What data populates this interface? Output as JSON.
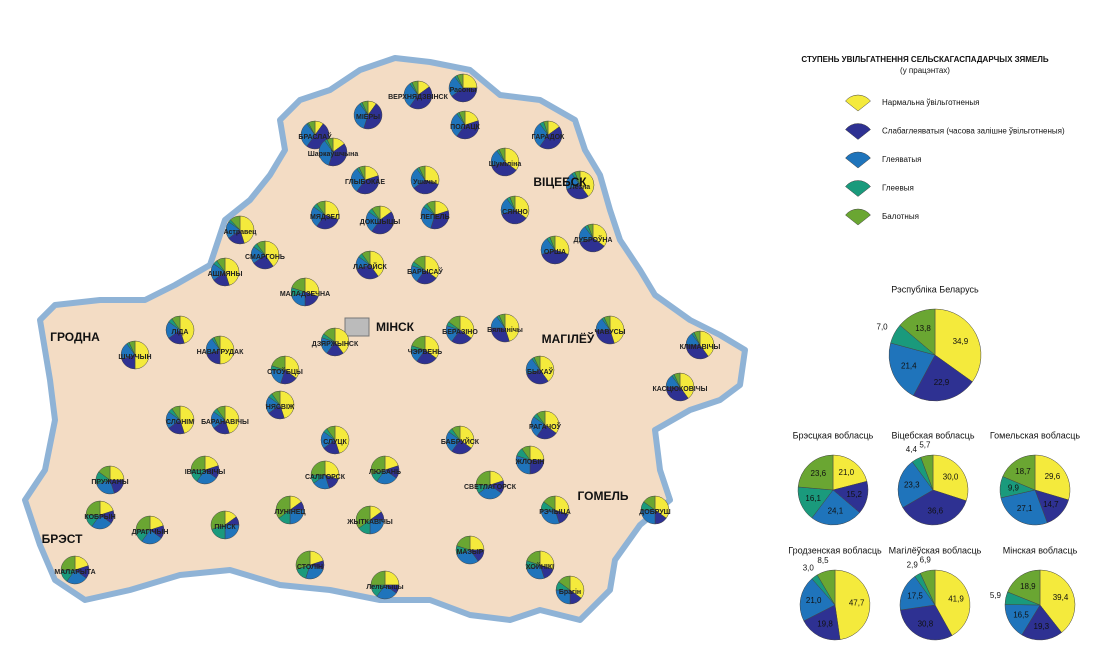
{
  "legend": {
    "title": "СТУПЕНЬ УВІЛЬГАТНЕННЯ СЕЛЬСКАГАСПАДАРЧЫХ ЗЯМЕЛЬ",
    "subtitle": "(у працэнтах)",
    "items": [
      {
        "name": "Нармальна ўвільготненыя",
        "color": "#f4ea3c"
      },
      {
        "name": "Слабаглеяватыя (часова залішне ўвільготненыя)",
        "color": "#2e3192"
      },
      {
        "name": "Глеяватыя",
        "color": "#1f74bb"
      },
      {
        "name": "Глеевыя",
        "color": "#1a9a7c"
      },
      {
        "name": "Балотныя",
        "color": "#6aa632"
      }
    ]
  },
  "regions": [
    {
      "name": "Рэспубліка Беларусь",
      "values": [
        34.9,
        22.9,
        21.4,
        7.0,
        13.8
      ],
      "value_labels": [
        "34,9",
        "22,9",
        "21,4",
        "7,0",
        "13,8"
      ]
    },
    {
      "name": "Брэсцкая вобласць",
      "values": [
        21.0,
        15.2,
        24.1,
        16.1,
        23.6
      ],
      "value_labels": [
        "21,0",
        "15,2",
        "24,1",
        "16,1",
        "23,6"
      ]
    },
    {
      "name": "Віцебская вобласць",
      "values": [
        30.0,
        36.6,
        23.3,
        4.4,
        5.7
      ],
      "value_labels": [
        "30,0",
        "36,6",
        "23,3",
        "4,4",
        "5,7"
      ]
    },
    {
      "name": "Гомельская вобласць",
      "values": [
        29.6,
        14.7,
        27.1,
        9.9,
        18.7
      ],
      "value_labels": [
        "29,6",
        "14,7",
        "27,1",
        "9,9",
        "18,7"
      ]
    },
    {
      "name": "Гродзенская вобласць",
      "values": [
        47.7,
        19.8,
        21.0,
        3.0,
        8.5
      ],
      "value_labels": [
        "47,7",
        "19,8",
        "21,0",
        "3,0",
        "8,5"
      ]
    },
    {
      "name": "Магілёўская вобласць",
      "values": [
        41.9,
        30.8,
        17.5,
        2.9,
        6.9
      ],
      "value_labels": [
        "41,9",
        "30,8",
        "17,5",
        "2,9",
        "6,9"
      ]
    },
    {
      "name": "Мінская вобласць",
      "values": [
        39.4,
        19.3,
        16.5,
        5.9,
        18.9
      ],
      "value_labels": [
        "39,4",
        "19,3",
        "16,5",
        "5,9",
        "18,9"
      ]
    }
  ],
  "map": {
    "cities": [
      "ГРОДНА",
      "БРЭСТ",
      "МІНСК",
      "ВІЦЕБСК",
      "МАГІЛЁЎ",
      "ГОМЕЛЬ"
    ],
    "districts": [
      {
        "name": "ВЕРХНЯДЗВІНСК",
        "values": [
          15,
          45,
          30,
          3,
          7
        ]
      },
      {
        "name": "БРАСЛАЎ",
        "values": [
          10,
          50,
          30,
          2,
          8
        ]
      },
      {
        "name": "МІЁРЫ",
        "values": [
          10,
          45,
          35,
          3,
          7
        ]
      },
      {
        "name": "ПОЛАЦК",
        "values": [
          20,
          40,
          30,
          3,
          7
        ]
      },
      {
        "name": "ГАРАДОК",
        "values": [
          15,
          45,
          30,
          5,
          5
        ]
      },
      {
        "name": "Расоны",
        "values": [
          25,
          40,
          25,
          3,
          7
        ]
      },
      {
        "name": "Шаркаўшчына",
        "values": [
          15,
          40,
          35,
          3,
          7
        ]
      },
      {
        "name": "ГЛЫБОКАЕ",
        "values": [
          20,
          40,
          30,
          3,
          7
        ]
      },
      {
        "name": "Ушачы",
        "values": [
          30,
          35,
          25,
          3,
          7
        ]
      },
      {
        "name": "Шуміліна",
        "values": [
          35,
          35,
          20,
          3,
          7
        ]
      },
      {
        "name": "Лёзна",
        "values": [
          40,
          30,
          20,
          4,
          6
        ]
      },
      {
        "name": "МЯДЗЕЛ",
        "values": [
          30,
          30,
          25,
          5,
          10
        ]
      },
      {
        "name": "ДОКШЫЦЫ",
        "values": [
          15,
          45,
          25,
          5,
          10
        ]
      },
      {
        "name": "ЛЕПЕЛЬ",
        "values": [
          20,
          35,
          30,
          5,
          10
        ]
      },
      {
        "name": "СЯННО",
        "values": [
          35,
          35,
          20,
          4,
          6
        ]
      },
      {
        "name": "Астравец",
        "values": [
          45,
          20,
          20,
          3,
          12
        ]
      },
      {
        "name": "СМАРГОНЬ",
        "values": [
          40,
          25,
          20,
          5,
          10
        ]
      },
      {
        "name": "АШМЯНЫ",
        "values": [
          45,
          20,
          20,
          5,
          10
        ]
      },
      {
        "name": "ЛАГОЙСК",
        "values": [
          40,
          30,
          15,
          5,
          10
        ]
      },
      {
        "name": "БАРЫСАЎ",
        "values": [
          35,
          25,
          20,
          5,
          15
        ]
      },
      {
        "name": "ОРША",
        "values": [
          30,
          40,
          20,
          4,
          6
        ]
      },
      {
        "name": "ДУБРОЎНА",
        "values": [
          35,
          35,
          20,
          4,
          6
        ]
      },
      {
        "name": "МАЛАДЗЕЧНА",
        "values": [
          30,
          20,
          20,
          10,
          20
        ]
      },
      {
        "name": "ЛІДА",
        "values": [
          45,
          20,
          20,
          5,
          10
        ]
      },
      {
        "name": "Бялынічы",
        "values": [
          45,
          30,
          15,
          3,
          7
        ]
      },
      {
        "name": "БЕРАЗІНО",
        "values": [
          35,
          25,
          20,
          5,
          15
        ]
      },
      {
        "name": "ЧАВУСЫ",
        "values": [
          45,
          30,
          15,
          3,
          7
        ]
      },
      {
        "name": "КЛІМАВІЧЫ",
        "values": [
          40,
          35,
          15,
          3,
          7
        ]
      },
      {
        "name": "ШЧУЧЫН",
        "values": [
          50,
          20,
          20,
          3,
          7
        ]
      },
      {
        "name": "НАВАГРУДАК",
        "values": [
          50,
          20,
          20,
          3,
          7
        ]
      },
      {
        "name": "ДЗЯРЖЫНСК",
        "values": [
          40,
          20,
          20,
          5,
          15
        ]
      },
      {
        "name": "ЧЭРВЕНЬ",
        "values": [
          35,
          25,
          15,
          5,
          20
        ]
      },
      {
        "name": "СТОЎБЦЫ",
        "values": [
          35,
          20,
          20,
          5,
          20
        ]
      },
      {
        "name": "БЫХАЎ",
        "values": [
          40,
          30,
          20,
          3,
          7
        ]
      },
      {
        "name": "КАСЦЮКОВІЧЫ",
        "values": [
          40,
          35,
          15,
          3,
          7
        ]
      },
      {
        "name": "БАРАНАВІЧЫ",
        "values": [
          45,
          20,
          20,
          5,
          10
        ]
      },
      {
        "name": "СЛОНІМ",
        "values": [
          45,
          20,
          20,
          5,
          10
        ]
      },
      {
        "name": "НЯСВІЖ",
        "values": [
          45,
          20,
          20,
          5,
          10
        ]
      },
      {
        "name": "СЛУЦК",
        "values": [
          45,
          20,
          20,
          5,
          10
        ]
      },
      {
        "name": "БАБРУЙСК",
        "values": [
          35,
          25,
          25,
          5,
          10
        ]
      },
      {
        "name": "РАГАЧОЎ",
        "values": [
          35,
          25,
          25,
          5,
          10
        ]
      },
      {
        "name": "ЖЛОБІН",
        "values": [
          25,
          25,
          30,
          10,
          10
        ]
      },
      {
        "name": "ПРУЖАНЫ",
        "values": [
          25,
          20,
          25,
          15,
          15
        ]
      },
      {
        "name": "ІВАЦЭВІЧЫ",
        "values": [
          20,
          15,
          25,
          15,
          25
        ]
      },
      {
        "name": "САЛІГОРСК",
        "values": [
          30,
          15,
          20,
          10,
          25
        ]
      },
      {
        "name": "ЛЮБАНЬ",
        "values": [
          20,
          15,
          25,
          10,
          30
        ]
      },
      {
        "name": "СВЕТЛАГОРСК",
        "values": [
          20,
          15,
          30,
          10,
          25
        ]
      },
      {
        "name": "КОБРЫН",
        "values": [
          20,
          15,
          25,
          15,
          25
        ]
      },
      {
        "name": "ПІНСК",
        "values": [
          15,
          10,
          25,
          20,
          30
        ]
      },
      {
        "name": "ЛУНІНЕЦ",
        "values": [
          15,
          10,
          25,
          15,
          35
        ]
      },
      {
        "name": "ЖЫТКАВІЧЫ",
        "values": [
          15,
          10,
          25,
          15,
          35
        ]
      },
      {
        "name": "МАЗЫР",
        "values": [
          25,
          15,
          30,
          10,
          20
        ]
      },
      {
        "name": "РЭЧЫЦА",
        "values": [
          30,
          15,
          30,
          10,
          15
        ]
      },
      {
        "name": "ДОБРУШ",
        "values": [
          35,
          15,
          25,
          10,
          15
        ]
      },
      {
        "name": "СТОЛІН",
        "values": [
          20,
          10,
          25,
          15,
          30
        ]
      },
      {
        "name": "Лельчыцы",
        "values": [
          25,
          10,
          25,
          15,
          25
        ]
      },
      {
        "name": "ХОЙНІКІ",
        "values": [
          30,
          15,
          25,
          10,
          20
        ]
      },
      {
        "name": "Брагін",
        "values": [
          35,
          15,
          25,
          10,
          15
        ]
      },
      {
        "name": "МАЛАРЫТА",
        "values": [
          20,
          15,
          25,
          15,
          25
        ]
      },
      {
        "name": "ДРАГІЧЫН",
        "values": [
          20,
          15,
          25,
          15,
          25
        ]
      }
    ]
  }
}
